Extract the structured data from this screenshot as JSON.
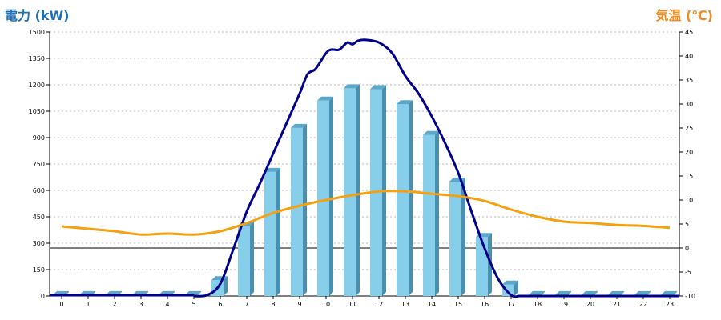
{
  "chart_data": {
    "type": "bar",
    "title_left": "電力 (kW)",
    "title_right": "気温 (℃)",
    "categories": [
      "0",
      "1",
      "2",
      "3",
      "4",
      "5",
      "6",
      "7",
      "8",
      "9",
      "10",
      "11",
      "12",
      "13",
      "14",
      "15",
      "16",
      "17",
      "18",
      "19",
      "20",
      "21",
      "22",
      "23"
    ],
    "y_left": {
      "min": 0,
      "max": 1500,
      "ticks": [
        0,
        150,
        300,
        450,
        600,
        750,
        900,
        1050,
        1200,
        1350,
        1500
      ]
    },
    "y_right": {
      "min": -10,
      "max": 45,
      "ticks": [
        -10,
        -5,
        0,
        5,
        10,
        15,
        20,
        25,
        30,
        35,
        40,
        45
      ]
    },
    "grid": true,
    "series": [
      {
        "type": "bar",
        "axis": "left",
        "values": [
          5,
          5,
          5,
          5,
          5,
          5,
          90,
          400,
          705,
          955,
          1110,
          1180,
          1175,
          1090,
          915,
          650,
          335,
          65,
          5,
          5,
          5,
          5,
          5,
          5
        ]
      },
      {
        "type": "line",
        "axis": "left",
        "color": "#00008b",
        "x": [
          5.0,
          5.5,
          6.0,
          6.5,
          7.0,
          7.5,
          8.0,
          8.5,
          9.0,
          9.3,
          9.6,
          10.0,
          10.2,
          10.5,
          10.8,
          11.0,
          11.2,
          11.5,
          12.0,
          12.5,
          13.0,
          13.5,
          14.0,
          14.5,
          15.0,
          15.5,
          16.0,
          16.5,
          17.0,
          17.3
        ],
        "values": [
          0,
          5,
          70,
          270,
          480,
          640,
          810,
          980,
          1150,
          1260,
          1290,
          1380,
          1400,
          1400,
          1440,
          1430,
          1450,
          1455,
          1440,
          1380,
          1250,
          1150,
          1020,
          870,
          700,
          480,
          270,
          100,
          5,
          0
        ]
      },
      {
        "type": "line",
        "axis": "right",
        "color": "#f5a00f",
        "x": [
          0,
          1,
          2,
          3,
          4,
          5,
          6,
          7,
          8,
          9,
          10,
          11,
          12,
          13,
          14,
          15,
          16,
          17,
          18,
          19,
          20,
          21,
          22,
          23
        ],
        "values": [
          4.5,
          4.0,
          3.5,
          2.8,
          3.0,
          2.8,
          3.5,
          5.2,
          7.3,
          8.8,
          10.0,
          11.0,
          11.8,
          11.8,
          11.3,
          10.8,
          9.8,
          8.0,
          6.5,
          5.5,
          5.2,
          4.8,
          4.6,
          4.2
        ]
      }
    ],
    "colors": {
      "bar_front": "#87ceeb",
      "bar_side": "#4a8eb0",
      "bar_top": "#5aa8cc",
      "power_line": "#00008b",
      "temp_line": "#f5a00f",
      "zero_line": "#000000",
      "grid": "#bbbbbb"
    }
  }
}
